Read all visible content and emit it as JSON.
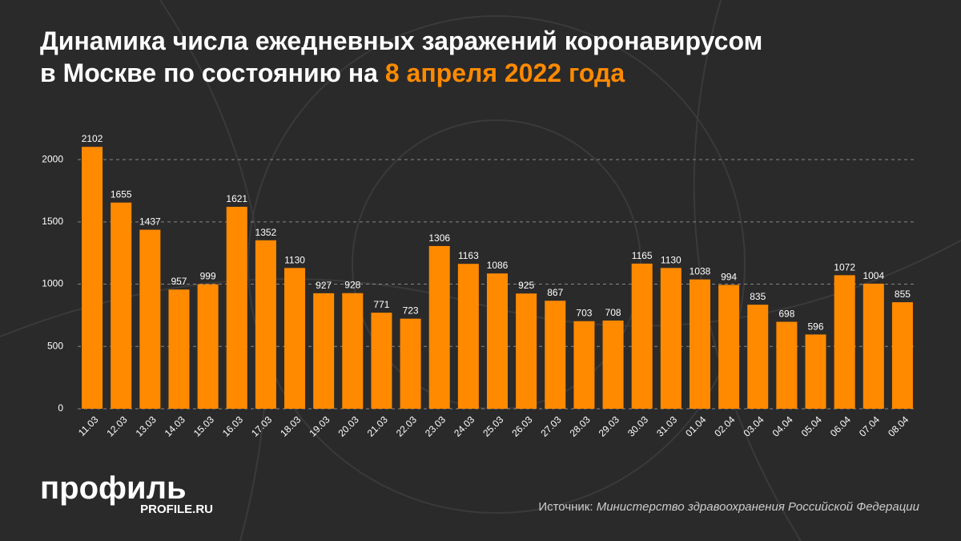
{
  "chart_data": {
    "type": "bar",
    "title": "Динамика числа ежедневных заражений коронавирусом",
    "title_line2": "в Москве по состоянию на",
    "title_highlight": "8 апреля 2022 года",
    "categories": [
      "11.03",
      "12.03",
      "13.03",
      "14.03",
      "15.03",
      "16.03",
      "17.03",
      "18.03",
      "19.03",
      "20.03",
      "21.03",
      "22.03",
      "23.03",
      "24.03",
      "25.03",
      "26.03",
      "27.03",
      "28.03",
      "29.03",
      "30.03",
      "31.03",
      "01.04",
      "02.04",
      "03.04",
      "04.04",
      "05.04",
      "06.04",
      "07.04",
      "08.04"
    ],
    "values": [
      2102,
      1655,
      1437,
      957,
      999,
      1621,
      1352,
      1130,
      927,
      928,
      771,
      723,
      1306,
      1163,
      1086,
      925,
      867,
      703,
      708,
      1165,
      1130,
      1038,
      994,
      835,
      698,
      596,
      1072,
      1004,
      855
    ],
    "color": "#ff8a00",
    "ylim": [
      0,
      2200
    ],
    "yticks": [
      0,
      500,
      1000,
      1500,
      2000
    ],
    "grid": true
  },
  "footer": {
    "logo": "профиль",
    "logo_url": "PROFILE.RU",
    "source_label": "Источник:",
    "source": "Министерство здравоохранения Российской Федерации"
  }
}
